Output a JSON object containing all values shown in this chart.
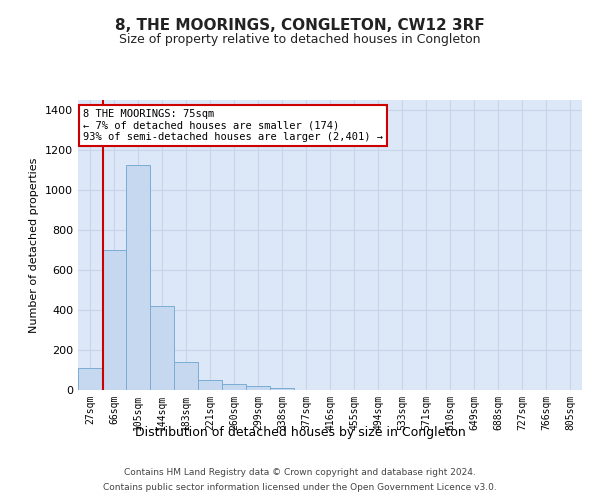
{
  "title": "8, THE MOORINGS, CONGLETON, CW12 3RF",
  "subtitle": "Size of property relative to detached houses in Congleton",
  "xlabel": "Distribution of detached houses by size in Congleton",
  "ylabel": "Number of detached properties",
  "categories": [
    "27sqm",
    "66sqm",
    "105sqm",
    "144sqm",
    "183sqm",
    "221sqm",
    "260sqm",
    "299sqm",
    "338sqm",
    "377sqm",
    "416sqm",
    "455sqm",
    "494sqm",
    "533sqm",
    "571sqm",
    "610sqm",
    "649sqm",
    "688sqm",
    "727sqm",
    "766sqm",
    "805sqm"
  ],
  "values": [
    110,
    700,
    1125,
    420,
    140,
    50,
    30,
    20,
    10,
    0,
    0,
    0,
    0,
    0,
    0,
    0,
    0,
    0,
    0,
    0,
    0
  ],
  "bar_color": "#c5d8f0",
  "bar_edge_color": "#7aadd4",
  "vline_color": "#cc0000",
  "annotation_text": "8 THE MOORINGS: 75sqm\n← 7% of detached houses are smaller (174)\n93% of semi-detached houses are larger (2,401) →",
  "annotation_box_color": "#ffffff",
  "annotation_box_edge": "#cc0000",
  "ylim": [
    0,
    1450
  ],
  "yticks": [
    0,
    200,
    400,
    600,
    800,
    1000,
    1200,
    1400
  ],
  "grid_color": "#c8d4e8",
  "bg_color": "#dce8f8",
  "fig_bg_color": "#ffffff",
  "footer1": "Contains HM Land Registry data © Crown copyright and database right 2024.",
  "footer2": "Contains public sector information licensed under the Open Government Licence v3.0."
}
